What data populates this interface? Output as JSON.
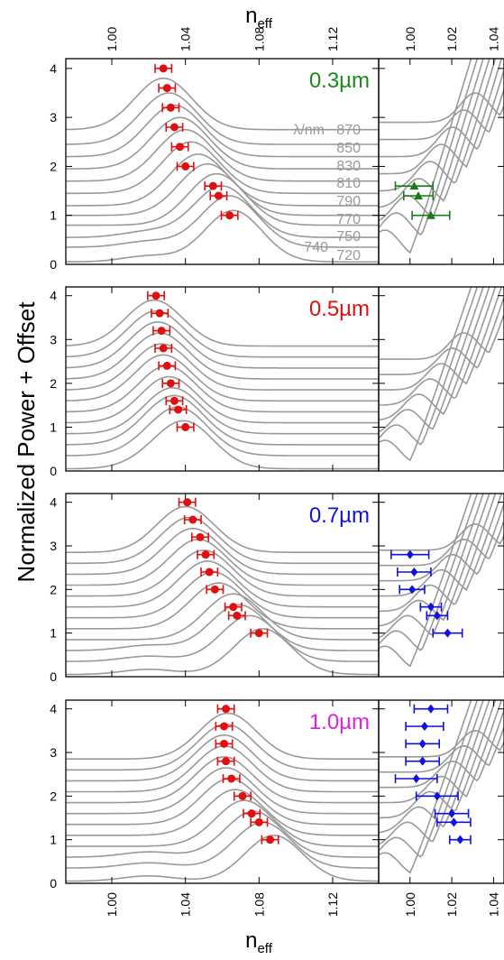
{
  "figure": {
    "top_xlabel_base": "n",
    "top_xlabel_sub": "eff",
    "bottom_xlabel_base": "n",
    "bottom_xlabel_sub": "eff",
    "ylabel": "Normalized Power + Offset",
    "wavelength_header": "λ/nm",
    "wavelength_labels_right": [
      "870",
      "850",
      "830",
      "810",
      "790",
      "770",
      "750",
      "720"
    ],
    "wavelength_label_left": "740"
  },
  "chart_data": [
    {
      "type": "line",
      "panel": "0.3 µm left",
      "thickness_label": "0.3µm",
      "label_color": "#1a8a1a",
      "xlim": [
        0.975,
        1.145
      ],
      "ylim": [
        0,
        4.2
      ],
      "xticks": [
        1.0,
        1.04,
        1.08,
        1.12
      ],
      "xtick_labels": [
        "1.00",
        "1.04",
        "1.08",
        "1.12"
      ],
      "yticks": [
        0,
        1,
        2,
        3,
        4
      ],
      "ytick_labels": [
        "0",
        "1",
        "2",
        "3",
        "4"
      ],
      "marker": "circle",
      "marker_color": "#e01010",
      "peaks_x": [
        1.028,
        1.03,
        1.032,
        1.034,
        1.037,
        1.04,
        1.055,
        1.058,
        1.064
      ],
      "peaks_y": [
        4.0,
        3.6,
        3.2,
        2.8,
        2.4,
        2.0,
        1.6,
        1.4,
        1.0
      ],
      "xerr": 0.0045,
      "curve_offsets": [
        0.05,
        0.35,
        0.55,
        0.8,
        1.0,
        1.2,
        1.45,
        1.7,
        1.95,
        2.2,
        2.45,
        2.75
      ],
      "curve_centers": [
        1.066,
        1.064,
        1.06,
        1.057,
        1.052,
        1.047,
        1.043,
        1.04,
        1.037,
        1.034,
        1.031,
        1.028
      ]
    },
    {
      "type": "line",
      "panel": "0.3 µm right",
      "xlim": [
        0.985,
        1.045
      ],
      "ylim": [
        0,
        4.2
      ],
      "xticks": [
        1.0,
        1.02,
        1.04
      ],
      "xtick_labels": [
        "1.00",
        "1.02",
        "1.04"
      ],
      "yticks": [
        0,
        1,
        2,
        3,
        4
      ],
      "marker": "triangle",
      "marker_color": "#1a7a1a",
      "points_x": [
        1.002,
        1.004,
        1.01
      ],
      "points_y": [
        1.6,
        1.4,
        1.0
      ],
      "xerr": [
        0.009,
        0.007,
        0.009
      ]
    },
    {
      "type": "line",
      "panel": "0.5 µm left",
      "thickness_label": "0.5µm",
      "label_color": "#e01010",
      "xlim": [
        0.975,
        1.145
      ],
      "ylim": [
        0,
        4.2
      ],
      "xticks": [
        1.0,
        1.04,
        1.08,
        1.12
      ],
      "yticks": [
        0,
        1,
        2,
        3,
        4
      ],
      "ytick_labels": [
        "0",
        "1",
        "2",
        "3",
        "4"
      ],
      "marker": "circle",
      "marker_color": "#e01010",
      "peaks_x": [
        1.024,
        1.026,
        1.027,
        1.028,
        1.03,
        1.032,
        1.034,
        1.036,
        1.04
      ],
      "peaks_y": [
        4.0,
        3.6,
        3.2,
        2.8,
        2.4,
        2.0,
        1.6,
        1.4,
        1.0
      ],
      "xerr": 0.0045,
      "curve_offsets": [
        0.05,
        0.35,
        0.6,
        0.85,
        1.1,
        1.35,
        1.6,
        1.85,
        2.1,
        2.35,
        2.6,
        2.85
      ],
      "curve_centers": [
        1.04,
        1.037,
        1.035,
        1.033,
        1.031,
        1.03,
        1.028,
        1.027,
        1.026,
        1.025,
        1.024,
        1.023
      ]
    },
    {
      "type": "line",
      "panel": "0.5 µm right",
      "xlim": [
        0.985,
        1.045
      ],
      "ylim": [
        0,
        4.2
      ],
      "yticks": [
        0,
        1,
        2,
        3,
        4
      ]
    },
    {
      "type": "line",
      "panel": "0.7 µm left",
      "thickness_label": "0.7µm",
      "label_color": "#1010e0",
      "xlim": [
        0.975,
        1.145
      ],
      "ylim": [
        0,
        4.2
      ],
      "xticks": [
        1.0,
        1.04,
        1.08,
        1.12
      ],
      "yticks": [
        0,
        1,
        2,
        3,
        4
      ],
      "ytick_labels": [
        "0",
        "1",
        "2",
        "3",
        "4"
      ],
      "marker": "circle",
      "marker_color": "#e01010",
      "peaks_x": [
        1.041,
        1.044,
        1.048,
        1.051,
        1.053,
        1.056,
        1.066,
        1.068,
        1.08
      ],
      "peaks_y": [
        4.0,
        3.6,
        3.2,
        2.8,
        2.4,
        2.0,
        1.6,
        1.4,
        1.0
      ],
      "xerr": 0.0045,
      "curve_offsets": [
        0.05,
        0.35,
        0.6,
        0.85,
        1.1,
        1.35,
        1.6,
        1.85,
        2.1,
        2.35,
        2.6,
        2.85
      ],
      "curve_centers": [
        1.082,
        1.075,
        1.069,
        1.066,
        1.058,
        1.055,
        1.052,
        1.05,
        1.047,
        1.044,
        1.042,
        1.04
      ]
    },
    {
      "type": "line",
      "panel": "0.7 µm right",
      "xlim": [
        0.985,
        1.045
      ],
      "ylim": [
        0,
        4.2
      ],
      "yticks": [
        0,
        1,
        2,
        3,
        4
      ],
      "marker": "diamond",
      "marker_color": "#1010e0",
      "points_x": [
        1.0,
        1.002,
        1.001,
        1.01,
        1.013,
        1.018
      ],
      "points_y": [
        2.8,
        2.4,
        2.0,
        1.6,
        1.4,
        1.0
      ],
      "xerr": [
        0.009,
        0.008,
        0.006,
        0.005,
        0.005,
        0.007
      ]
    },
    {
      "type": "line",
      "panel": "1.0 µm left",
      "thickness_label": "1.0µm",
      "label_color": "#e020e0",
      "xlim": [
        0.975,
        1.145
      ],
      "ylim": [
        0,
        4.2
      ],
      "xticks": [
        1.0,
        1.04,
        1.08,
        1.12
      ],
      "xtick_labels": [
        "1.00",
        "1.04",
        "1.08",
        "1.12"
      ],
      "yticks": [
        0,
        1,
        2,
        3,
        4
      ],
      "ytick_labels": [
        "0",
        "1",
        "2",
        "3",
        "4"
      ],
      "marker": "circle",
      "marker_color": "#e01010",
      "peaks_x": [
        1.062,
        1.061,
        1.061,
        1.062,
        1.065,
        1.071,
        1.076,
        1.08,
        1.086
      ],
      "peaks_y": [
        4.0,
        3.6,
        3.2,
        2.8,
        2.4,
        2.0,
        1.6,
        1.4,
        1.0
      ],
      "xerr": 0.0045,
      "curve_offsets": [
        0.05,
        0.35,
        0.6,
        0.85,
        1.1,
        1.35,
        1.6,
        1.85,
        2.1,
        2.35,
        2.6,
        2.85
      ],
      "curve_centers": [
        1.088,
        1.082,
        1.077,
        1.072,
        1.067,
        1.064,
        1.062,
        1.061,
        1.061,
        1.061,
        1.062,
        1.063
      ]
    },
    {
      "type": "line",
      "panel": "1.0 µm right",
      "xlim": [
        0.985,
        1.045
      ],
      "ylim": [
        0,
        4.2
      ],
      "xticks": [
        1.0,
        1.02,
        1.04
      ],
      "xtick_labels": [
        "1.00",
        "1.02",
        "1.04"
      ],
      "yticks": [
        0,
        1,
        2,
        3,
        4
      ],
      "marker": "diamond",
      "marker_color": "#1010e0",
      "points_x": [
        1.01,
        1.007,
        1.006,
        1.006,
        1.003,
        1.013,
        1.02,
        1.021,
        1.024
      ],
      "points_y": [
        4.0,
        3.6,
        3.2,
        2.8,
        2.4,
        2.0,
        1.6,
        1.4,
        1.0
      ],
      "xerr": [
        0.008,
        0.009,
        0.008,
        0.008,
        0.01,
        0.01,
        0.008,
        0.008,
        0.005
      ]
    }
  ]
}
